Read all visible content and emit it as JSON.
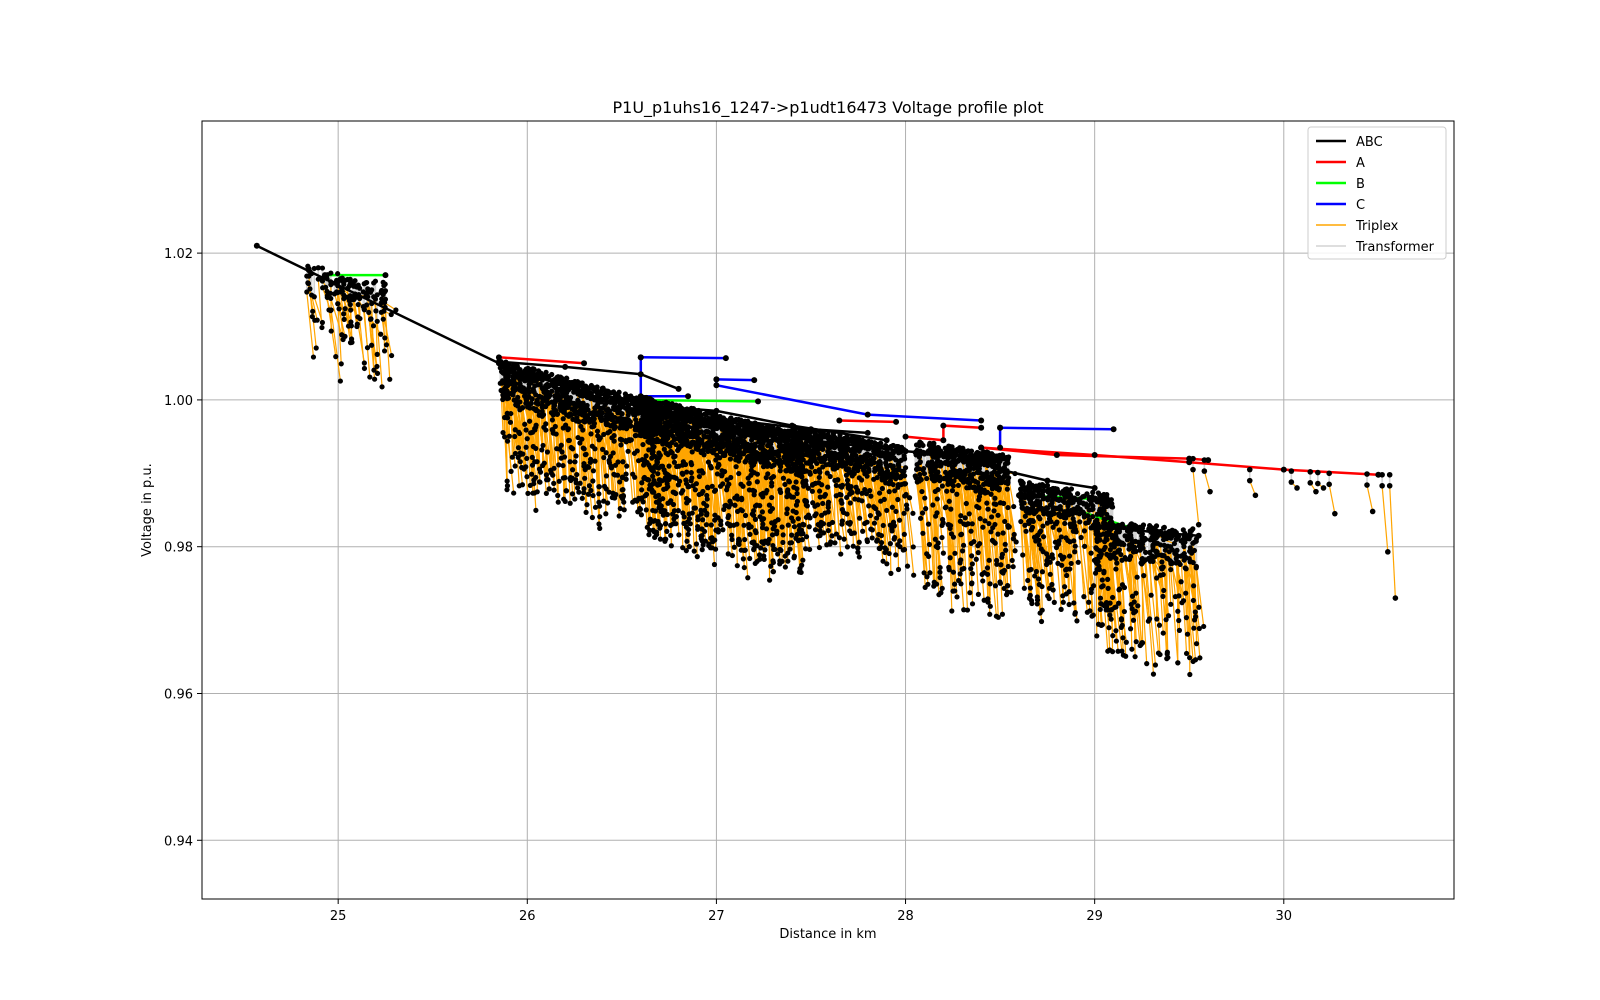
{
  "chart_data": {
    "type": "line",
    "title": "P1U_p1uhs16_1247->p1udt16473 Voltage profile plot",
    "xlabel": "Distance in km",
    "ylabel": "Voltage in p.u.",
    "xlim": [
      24.28,
      30.9
    ],
    "ylim": [
      0.932,
      1.038
    ],
    "xticks": [
      25,
      26,
      27,
      28,
      29,
      30
    ],
    "xtick_labels": [
      "25",
      "26",
      "27",
      "28",
      "29",
      "30"
    ],
    "yticks": [
      0.94,
      0.96,
      0.98,
      1.0,
      1.02
    ],
    "ytick_labels": [
      "0.94",
      "0.96",
      "0.98",
      "1.00",
      "1.02"
    ],
    "grid": true,
    "legend_position": "top-right",
    "series": [
      {
        "name": "ABC",
        "color": "#000000",
        "style": "thick",
        "points": [
          [
            24.57,
            1.021
          ],
          [
            25.85,
            1.005
          ],
          [
            26.4,
            1.0
          ],
          [
            26.75,
            0.9985
          ],
          [
            27.0,
            0.9965
          ],
          [
            27.5,
            0.9945
          ],
          [
            28.0,
            0.993
          ],
          [
            28.5,
            0.992
          ]
        ],
        "branches": [
          [
            [
              25.85,
              1.0052
            ],
            [
              26.2,
              1.0045
            ],
            [
              26.6,
              1.0035
            ],
            [
              26.8,
              1.0015
            ]
          ],
          [
            [
              26.5,
              0.9995
            ],
            [
              27.0,
              0.9985
            ],
            [
              27.4,
              0.9965
            ],
            [
              27.9,
              0.9945
            ]
          ],
          [
            [
              27.0,
              0.9975
            ],
            [
              27.5,
              0.996
            ],
            [
              27.8,
              0.9955
            ]
          ],
          [
            [
              28.5,
              0.9905
            ],
            [
              28.75,
              0.989
            ],
            [
              29.0,
              0.988
            ]
          ],
          [
            [
              29.0,
              0.983
            ],
            [
              29.3,
              0.982
            ],
            [
              29.55,
              0.9815
            ]
          ]
        ]
      },
      {
        "name": "A",
        "color": "#ff0000",
        "style": "thick",
        "points": [
          [
            28.4,
            0.9935
          ],
          [
            28.8,
            0.9925
          ],
          [
            29.5,
            0.992
          ],
          [
            29.6,
            0.9918
          ]
        ],
        "branches": [
          [
            [
              28.4,
              0.9935
            ],
            [
              29.0,
              0.9925
            ],
            [
              29.5,
              0.9915
            ],
            [
              30.0,
              0.9905
            ],
            [
              30.5,
              0.9898
            ]
          ],
          [
            [
              25.85,
              1.0058
            ],
            [
              26.3,
              1.005
            ]
          ],
          [
            [
              27.65,
              0.9972
            ],
            [
              27.95,
              0.997
            ]
          ],
          [
            [
              28.0,
              0.995
            ],
            [
              28.2,
              0.9945
            ],
            [
              28.2,
              0.9965
            ],
            [
              28.4,
              0.9962
            ]
          ]
        ]
      },
      {
        "name": "B",
        "color": "#00ff00",
        "style": "thick",
        "points": [
          [
            24.93,
            1.017
          ],
          [
            25.25,
            1.017
          ]
        ],
        "branches": [
          [
            [
              26.5,
              1.0
            ],
            [
              27.22,
              0.9998
            ]
          ],
          [
            [
              28.6,
              0.987
            ],
            [
              29.0,
              0.9865
            ]
          ],
          [
            [
              28.9,
              0.985
            ],
            [
              29.2,
              0.9825
            ]
          ]
        ]
      },
      {
        "name": "C",
        "color": "#0000ff",
        "style": "thick",
        "points": [
          [
            26.6,
            1.0058
          ],
          [
            27.05,
            1.0057
          ]
        ],
        "branches": [
          [
            [
              26.6,
              1.0058
            ],
            [
              26.6,
              1.0005
            ],
            [
              26.85,
              1.0005
            ]
          ],
          [
            [
              27.0,
              1.0028
            ],
            [
              27.2,
              1.0027
            ]
          ],
          [
            [
              27.0,
              1.0028
            ],
            [
              27.0,
              1.002
            ],
            [
              27.8,
              0.998
            ],
            [
              28.4,
              0.9972
            ]
          ],
          [
            [
              28.5,
              0.9962
            ],
            [
              29.1,
              0.996
            ]
          ],
          [
            [
              28.5,
              0.9962
            ],
            [
              28.5,
              0.9935
            ]
          ]
        ]
      },
      {
        "name": "Triplex",
        "color": "#ffa500",
        "style": "thin"
      },
      {
        "name": "Transformer",
        "color": "#d3d3d3",
        "style": "thin"
      }
    ]
  }
}
